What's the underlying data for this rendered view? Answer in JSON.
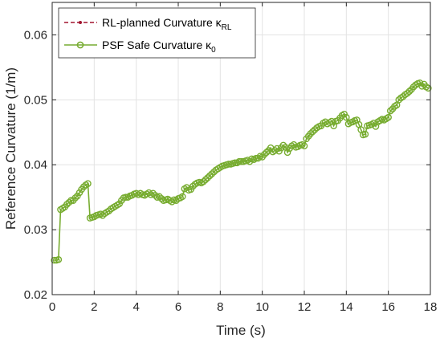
{
  "chart_data": {
    "type": "line",
    "xlabel": "Time (s)",
    "ylabel": "Reference Curvature (1/m)",
    "xlim": [
      0,
      18
    ],
    "ylim": [
      0.02,
      0.065
    ],
    "xticks": [
      0,
      2,
      4,
      6,
      8,
      10,
      12,
      14,
      16,
      18
    ],
    "yticks": [
      0.02,
      0.03,
      0.04,
      0.05,
      0.06
    ],
    "xtick_labels": [
      "0",
      "2",
      "4",
      "6",
      "8",
      "10",
      "12",
      "14",
      "16",
      "18"
    ],
    "ytick_labels": [
      "0.02",
      "0.03",
      "0.04",
      "0.05",
      "0.06"
    ],
    "grid": true,
    "legend_position": "top-left",
    "series": [
      {
        "name": "RL-planned Curvature κ",
        "name_subscript": "RL",
        "style": "dashed",
        "color": "#A2142F",
        "marker": "dot"
      },
      {
        "name": "PSF Safe Curvature κ",
        "name_subscript": "0",
        "style": "solid",
        "color": "#77AC30",
        "marker": "circle",
        "x": [
          0.1,
          0.2,
          0.3,
          0.4,
          0.5,
          0.6,
          0.7,
          0.8,
          0.9,
          1.0,
          1.1,
          1.2,
          1.3,
          1.4,
          1.5,
          1.6,
          1.7,
          1.8,
          1.9,
          2.0,
          2.1,
          2.2,
          2.3,
          2.4,
          2.5,
          2.6,
          2.7,
          2.8,
          2.9,
          3.0,
          3.1,
          3.2,
          3.3,
          3.4,
          3.5,
          3.6,
          3.7,
          3.8,
          3.9,
          4.0,
          4.1,
          4.2,
          4.3,
          4.4,
          4.5,
          4.6,
          4.7,
          4.8,
          4.9,
          5.0,
          5.1,
          5.2,
          5.3,
          5.4,
          5.5,
          5.6,
          5.7,
          5.8,
          5.9,
          6.0,
          6.1,
          6.2,
          6.3,
          6.4,
          6.5,
          6.6,
          6.7,
          6.8,
          6.9,
          7.0,
          7.1,
          7.2,
          7.3,
          7.4,
          7.5,
          7.6,
          7.7,
          7.8,
          7.9,
          8.0,
          8.1,
          8.2,
          8.3,
          8.4,
          8.5,
          8.6,
          8.7,
          8.8,
          8.9,
          9.0,
          9.1,
          9.2,
          9.3,
          9.4,
          9.5,
          9.6,
          9.7,
          9.8,
          9.9,
          10.0,
          10.1,
          10.2,
          10.3,
          10.4,
          10.5,
          10.6,
          10.7,
          10.8,
          10.9,
          11.0,
          11.1,
          11.2,
          11.3,
          11.4,
          11.5,
          11.6,
          11.7,
          11.8,
          11.9,
          12.0,
          12.1,
          12.2,
          12.3,
          12.4,
          12.5,
          12.6,
          12.7,
          12.8,
          12.9,
          13.0,
          13.1,
          13.2,
          13.3,
          13.4,
          13.5,
          13.6,
          13.7,
          13.8,
          13.9,
          14.0,
          14.1,
          14.2,
          14.3,
          14.4,
          14.5,
          14.6,
          14.7,
          14.8,
          14.9,
          15.0,
          15.1,
          15.2,
          15.3,
          15.4,
          15.5,
          15.6,
          15.7,
          15.8,
          15.9,
          16.0,
          16.1,
          16.2,
          16.3,
          16.4,
          16.5,
          16.6,
          16.7,
          16.8,
          16.9,
          17.0,
          17.1,
          17.2,
          17.3,
          17.4,
          17.5,
          17.6,
          17.7,
          17.8,
          17.9
        ],
        "values": [
          0.0253,
          0.0253,
          0.0254,
          0.0331,
          0.0333,
          0.0335,
          0.0339,
          0.0342,
          0.0345,
          0.0345,
          0.0349,
          0.0352,
          0.0357,
          0.0362,
          0.0366,
          0.0369,
          0.0371,
          0.0318,
          0.0319,
          0.032,
          0.0322,
          0.0323,
          0.0324,
          0.0322,
          0.0325,
          0.0327,
          0.0329,
          0.0332,
          0.0334,
          0.0336,
          0.0338,
          0.034,
          0.0345,
          0.0349,
          0.035,
          0.035,
          0.0352,
          0.0353,
          0.0355,
          0.0356,
          0.0354,
          0.0356,
          0.0354,
          0.0353,
          0.0355,
          0.0357,
          0.0354,
          0.0356,
          0.0353,
          0.035,
          0.0351,
          0.0348,
          0.0345,
          0.0346,
          0.0347,
          0.0345,
          0.0343,
          0.0346,
          0.0345,
          0.0348,
          0.0349,
          0.0351,
          0.0363,
          0.0365,
          0.0361,
          0.0362,
          0.0367,
          0.037,
          0.0372,
          0.0373,
          0.0372,
          0.0374,
          0.0377,
          0.038,
          0.0383,
          0.0386,
          0.0389,
          0.0392,
          0.0394,
          0.0396,
          0.0398,
          0.0399,
          0.04,
          0.0401,
          0.0401,
          0.0402,
          0.0403,
          0.0403,
          0.0405,
          0.0405,
          0.0405,
          0.0406,
          0.0407,
          0.0405,
          0.0409,
          0.0408,
          0.041,
          0.041,
          0.0413,
          0.0412,
          0.0416,
          0.0419,
          0.0422,
          0.0426,
          0.042,
          0.0422,
          0.0425,
          0.0421,
          0.0426,
          0.043,
          0.0427,
          0.0419,
          0.0425,
          0.0429,
          0.0431,
          0.0427,
          0.0428,
          0.043,
          0.0431,
          0.0429,
          0.044,
          0.0444,
          0.0448,
          0.0451,
          0.0454,
          0.0457,
          0.0459,
          0.046,
          0.0464,
          0.0466,
          0.0463,
          0.0465,
          0.0467,
          0.046,
          0.0467,
          0.0468,
          0.0472,
          0.0476,
          0.0478,
          0.0473,
          0.0463,
          0.0465,
          0.0466,
          0.0468,
          0.0469,
          0.0462,
          0.0454,
          0.0446,
          0.0447,
          0.046,
          0.0461,
          0.0462,
          0.0464,
          0.0459,
          0.0466,
          0.0468,
          0.047,
          0.0469,
          0.0471,
          0.0473,
          0.0483,
          0.0486,
          0.049,
          0.0492,
          0.05,
          0.0503,
          0.0505,
          0.0508,
          0.051,
          0.0513,
          0.0516,
          0.052,
          0.0523,
          0.0525,
          0.0526,
          0.0521,
          0.0524,
          0.052,
          0.0518
        ]
      }
    ]
  }
}
